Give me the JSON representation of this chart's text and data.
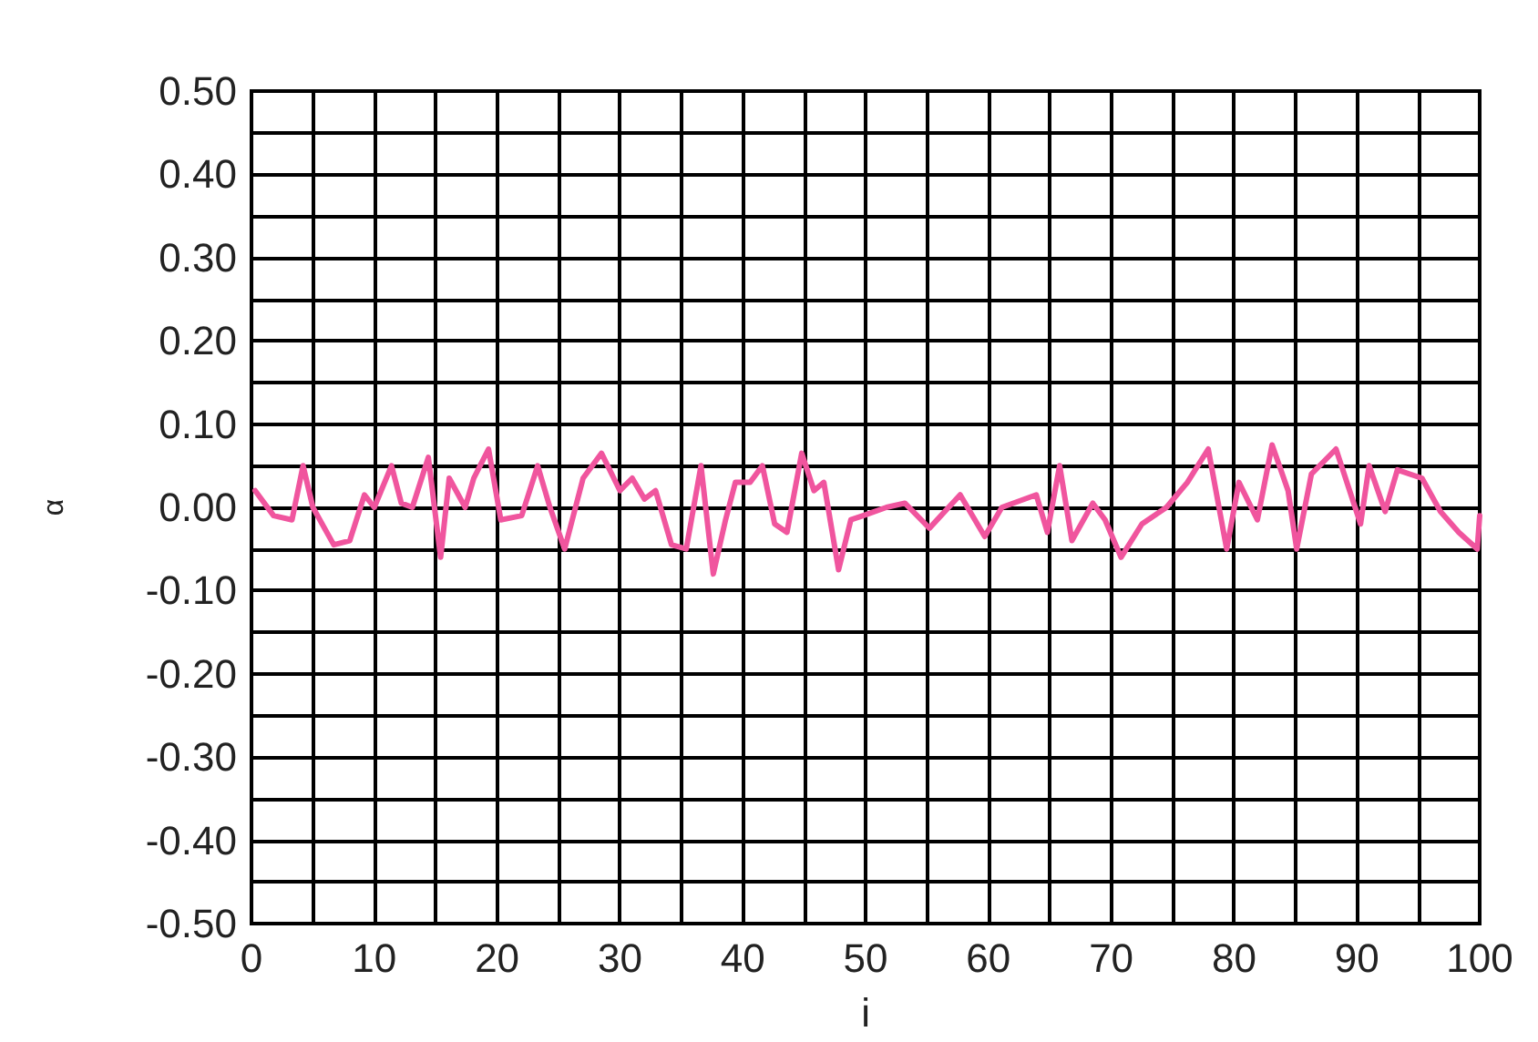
{
  "chart_data": {
    "type": "line",
    "xlabel": "i",
    "ylabel": "α",
    "x": [
      0.3,
      1.8,
      3.3,
      4.2,
      5,
      6.7,
      8,
      9.2,
      10,
      11.4,
      12.2,
      13.1,
      14.4,
      15.4,
      16.1,
      17.4,
      18.1,
      19.3,
      20.3,
      22,
      23.3,
      24.3,
      25.5,
      27,
      28.5,
      30,
      31,
      32,
      32.9,
      34.2,
      35.4,
      36.6,
      37.6,
      38.6,
      39.4,
      40.6,
      41.6,
      42.6,
      43.6,
      44.8,
      45.8,
      46.6,
      47.8,
      48.8,
      49.8,
      51.7,
      53.2,
      55.2,
      57.7,
      59.7,
      61.1,
      63.9,
      64.8,
      65.8,
      66.8,
      68.5,
      69.5,
      70.8,
      72.5,
      74.5,
      76.2,
      77.9,
      79.4,
      80.4,
      81.9,
      83.1,
      84.4,
      85.1,
      86.3,
      88.3,
      90.3,
      91,
      92.3,
      93.3,
      95.3,
      96.8,
      98.3,
      99.8,
      100
    ],
    "series": [
      {
        "color": "#f0559e",
        "values": [
          0.02,
          -0.01,
          -0.015,
          0.05,
          0,
          -0.045,
          -0.04,
          0.015,
          0,
          0.05,
          0.005,
          0,
          0.06,
          -0.06,
          0.035,
          0,
          0.035,
          0.07,
          -0.015,
          -0.01,
          0.05,
          0,
          -0.05,
          0.035,
          0.065,
          0.02,
          0.035,
          0.01,
          0.02,
          -0.045,
          -0.05,
          0.05,
          -0.08,
          -0.015,
          0.03,
          0.03,
          0.05,
          -0.02,
          -0.03,
          0.065,
          0.02,
          0.03,
          -0.075,
          -0.015,
          -0.01,
          0,
          0.005,
          -0.025,
          0.015,
          -0.035,
          0,
          0.015,
          -0.03,
          0.05,
          -0.04,
          0.005,
          -0.015,
          -0.06,
          -0.02,
          0,
          0.03,
          0.07,
          -0.05,
          0.03,
          -0.015,
          0.075,
          0.02,
          -0.05,
          0.04,
          0.07,
          -0.02,
          0.05,
          -0.005,
          0.045,
          0.035,
          -0.005,
          -0.03,
          -0.05,
          -0.01
        ]
      }
    ],
    "xlim": [
      0,
      100
    ],
    "xticks": [
      0,
      {
        "value": 5,
        "label": null
      },
      10,
      {
        "value": 15,
        "label": null
      },
      20,
      {
        "value": 25,
        "label": null
      },
      30,
      {
        "value": 35,
        "label": null
      },
      40,
      {
        "value": 45,
        "label": null
      },
      50,
      {
        "value": 55,
        "label": null
      },
      60,
      {
        "value": 65,
        "label": null
      },
      70,
      {
        "value": 75,
        "label": null
      },
      80,
      {
        "value": 85,
        "label": null
      },
      90,
      {
        "value": 95,
        "label": null
      },
      100
    ],
    "ylim": [
      -0.5,
      0.5
    ],
    "yticks": [
      {
        "value": -0.5,
        "label": "-0.50"
      },
      {
        "value": -0.45,
        "label": null
      },
      {
        "value": -0.4,
        "label": "-0.40"
      },
      {
        "value": -0.35,
        "label": null
      },
      {
        "value": -0.3,
        "label": "-0.30"
      },
      {
        "value": -0.25,
        "label": null
      },
      {
        "value": -0.2,
        "label": "-0.20"
      },
      {
        "value": -0.15,
        "label": null
      },
      {
        "value": -0.1,
        "label": "-0.10"
      },
      {
        "value": -0.05,
        "label": null
      },
      {
        "value": 0,
        "label": "0.00"
      },
      {
        "value": 0.05,
        "label": null
      },
      {
        "value": 0.1,
        "label": "0.10"
      },
      {
        "value": 0.15,
        "label": null
      },
      {
        "value": 0.2,
        "label": "0.20"
      },
      {
        "value": 0.25,
        "label": null
      },
      {
        "value": 0.3,
        "label": "0.30"
      },
      {
        "value": 0.35,
        "label": null
      },
      {
        "value": 0.4,
        "label": "0.40"
      },
      {
        "value": 0.45,
        "label": null
      },
      {
        "value": 0.5,
        "label": "0.50"
      }
    ],
    "grid": true,
    "marker": "none",
    "line_style": "solid"
  }
}
